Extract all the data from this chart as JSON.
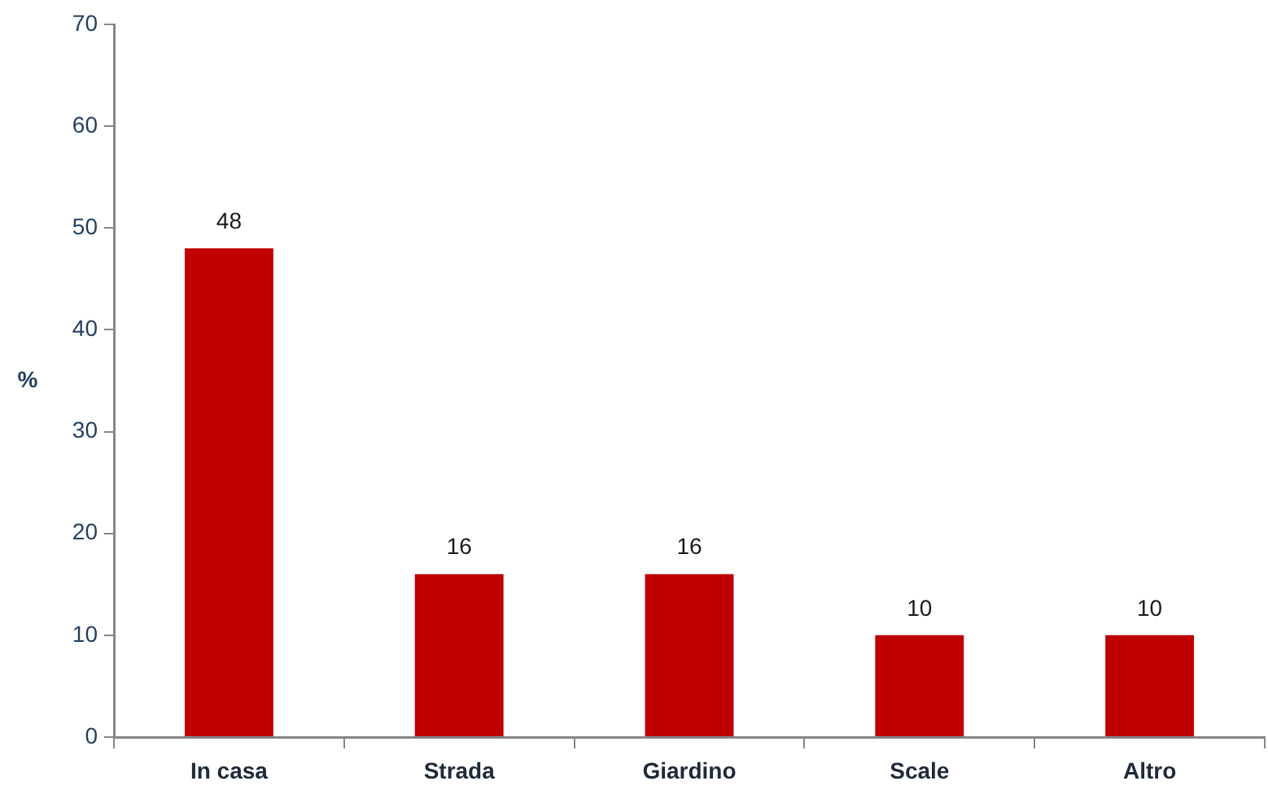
{
  "chart_data": {
    "type": "bar",
    "ylabel": "%",
    "categories": [
      "In casa",
      "Strada",
      "Giardino",
      "Scale",
      "Altro"
    ],
    "values": [
      48,
      16,
      16,
      10,
      10
    ],
    "color": "#c00000",
    "ylim": [
      0,
      70
    ],
    "yticks": [
      0,
      10,
      20,
      30,
      40,
      50,
      60,
      70
    ],
    "data_labels": true
  }
}
